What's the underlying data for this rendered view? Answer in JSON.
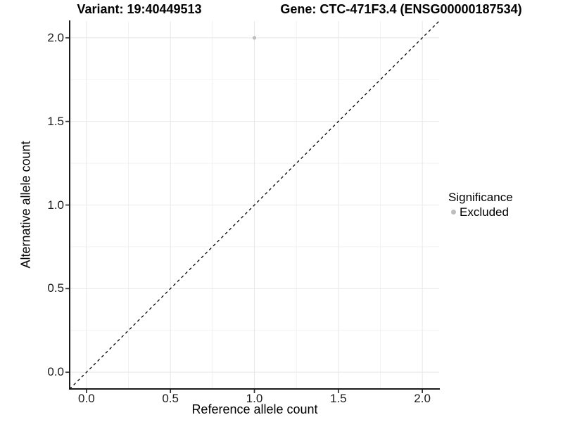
{
  "chart_data": {
    "type": "scatter",
    "title_left": "Variant: 19:40449513",
    "title_right": "Gene: CTC-471F3.4 (ENSG00000187534)",
    "xlabel": "Reference allele count",
    "ylabel": "Alternative allele count",
    "xlim": [
      -0.1,
      2.1
    ],
    "ylim": [
      -0.1,
      2.1
    ],
    "x_ticks": [
      0,
      0.5,
      1,
      1.5,
      2
    ],
    "y_ticks": [
      0,
      0.5,
      1,
      1.5,
      2
    ],
    "x_tick_labels": [
      "0.0",
      "0.5",
      "1.0",
      "1.5",
      "2.0"
    ],
    "y_tick_labels": [
      "0.0",
      "0.5",
      "1.0",
      "1.5",
      "2.0"
    ],
    "minor_gridlines": [
      0.25,
      0.75,
      1.25,
      1.75
    ],
    "grid": "major+minor",
    "identity_line": {
      "style": "dashed",
      "from": [
        -0.1,
        -0.1
      ],
      "to": [
        2.1,
        2.1
      ]
    },
    "series": [
      {
        "name": "Excluded",
        "color": "#bdbdbd",
        "points": [
          {
            "x": 1.0,
            "y": 2.0
          }
        ]
      }
    ],
    "legend": {
      "title": "Significance",
      "position": "right",
      "items": [
        {
          "label": "Excluded",
          "color": "#bdbdbd"
        }
      ]
    }
  },
  "colors": {
    "background": "#ffffff",
    "grid_major": "#e9e9e9",
    "grid_minor": "#f2f2f2",
    "axis_line": "#1a1a1a",
    "tick_mark": "#333333",
    "identity_line": "#000000",
    "point": "#bdbdbd",
    "text": "#000000"
  }
}
